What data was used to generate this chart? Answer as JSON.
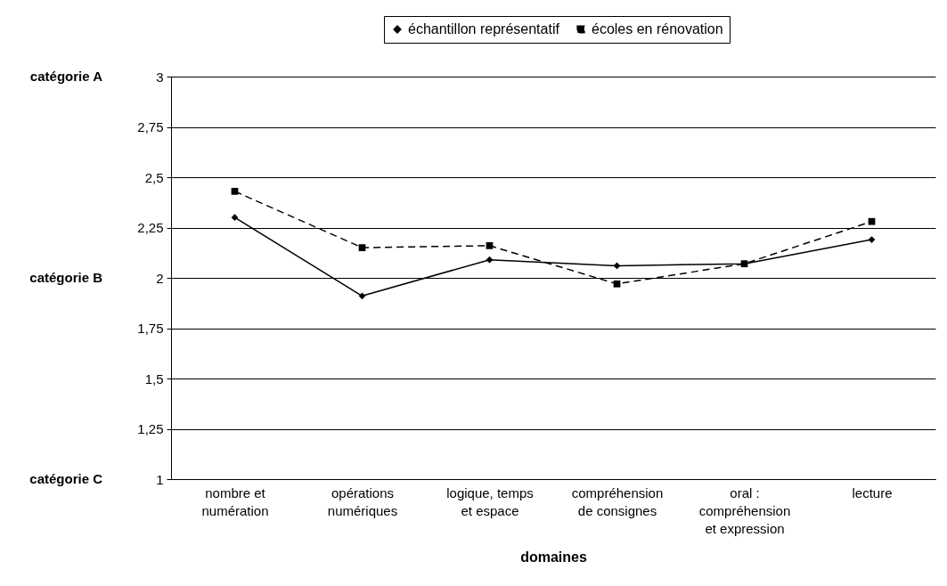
{
  "chart_data": {
    "type": "line",
    "xlabel": "domaines",
    "categories": [
      "nombre et numération",
      "opérations numériques",
      "logique, temps et espace",
      "compréhension de consignes",
      "oral : compréhension et expression",
      "lecture"
    ],
    "series": [
      {
        "name": "échantillon représentatif",
        "color": "#000000",
        "marker": "diamond",
        "line_style": "solid",
        "values": [
          2.3,
          1.91,
          2.09,
          2.06,
          2.07,
          2.19
        ]
      },
      {
        "name": "écoles en rénovation",
        "color": "#000000",
        "marker": "square",
        "line_style": "dashed",
        "values": [
          2.43,
          2.15,
          2.16,
          1.97,
          2.07,
          2.28
        ]
      }
    ],
    "ylim": [
      1,
      3
    ],
    "yticks": [
      1,
      {
        "value": 1.25,
        "label": "1,25"
      },
      {
        "value": 1.5,
        "label": "1,5"
      },
      {
        "value": 1.75,
        "label": "1,75"
      },
      2,
      {
        "value": 2.25,
        "label": "2,25"
      },
      {
        "value": 2.5,
        "label": "2,5"
      },
      {
        "value": 2.75,
        "label": "2,75"
      },
      3
    ],
    "annotations": [
      "catégorie A",
      "catégorie B",
      "catégorie C"
    ],
    "grid": "y",
    "legend": "top"
  }
}
